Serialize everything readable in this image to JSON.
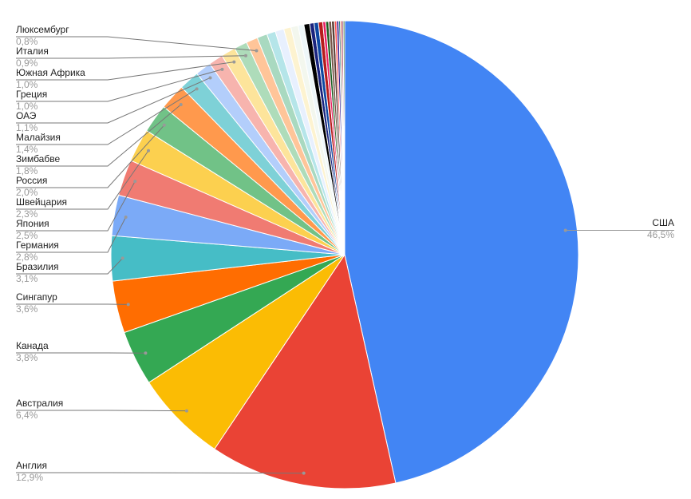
{
  "chart_data": {
    "type": "pie",
    "categories": [
      "США",
      "Англия",
      "Австралия",
      "Канада",
      "Сингапур",
      "Бразилия",
      "Германия",
      "Япония",
      "Швейцария",
      "Россия",
      "Зимбабве",
      "Малайзия",
      "ОАЭ",
      "Греция",
      "Южная Африка",
      "Италия",
      "Люксембург",
      null,
      null,
      null,
      null,
      null,
      null,
      null,
      null,
      null,
      null,
      null,
      null,
      null,
      null,
      null,
      null,
      null,
      null,
      null,
      null
    ],
    "values": [
      46.5,
      12.9,
      6.4,
      3.8,
      3.6,
      3.1,
      2.8,
      2.5,
      2.3,
      2.0,
      1.8,
      1.4,
      1.1,
      1.0,
      1.0,
      0.9,
      0.8,
      0.7,
      0.6,
      0.6,
      0.5,
      0.5,
      0.4,
      0.4,
      0.3,
      0.3,
      0.3,
      0.2,
      0.2,
      0.2,
      0.2,
      0.15,
      0.15,
      0.1,
      0.1,
      0.1,
      0.1
    ],
    "value_labels": [
      "46,5%",
      "12,9%",
      "6,4%",
      "3,8%",
      "3,6%",
      "3,1%",
      "2,8%",
      "2,5%",
      "2,3%",
      "2,0%",
      "1,8%",
      "1,4%",
      "1,1%",
      "1,0%",
      "1,0%",
      "0,9%",
      "0,8%",
      null,
      null,
      null,
      null,
      null,
      null,
      null,
      null,
      null,
      null,
      null,
      null,
      null,
      null,
      null,
      null,
      null,
      null,
      null,
      null
    ],
    "colors": [
      "#4285f4",
      "#ea4335",
      "#fbbc04",
      "#34a853",
      "#ff6d01",
      "#46bdc6",
      "#7baaf7",
      "#f07b72",
      "#fcd04f",
      "#71c287",
      "#ff994d",
      "#7ed1d7",
      "#b3cefb",
      "#f7b4ae",
      "#fde49b",
      "#aedcba",
      "#ffc599",
      "#a9d9c0",
      "#b5e5e9",
      "#e8f0fe",
      "#fdf3d0",
      "#f3f7ee",
      "#eef7f9",
      "#000000",
      "#1a237e",
      "#0d47a1",
      "#b71c1c",
      "#e91e63",
      "#1b5e20",
      "#795548",
      "#5d4037",
      "#ff5252",
      "#311b92",
      "#006064",
      "#bf360c",
      "#880e4f",
      "#33691e"
    ]
  }
}
